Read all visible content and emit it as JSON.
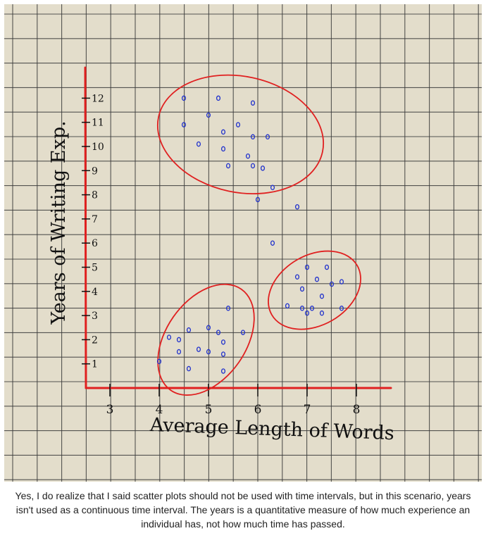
{
  "chart_data": {
    "type": "scatter",
    "xlabel": "Average Length of Words",
    "ylabel": "Years of Writing Exp.",
    "x_ticks": [
      3,
      4,
      5,
      6,
      7,
      8
    ],
    "y_ticks": [
      1,
      2,
      3,
      4,
      5,
      6,
      7,
      8,
      9,
      10,
      11,
      12
    ],
    "xlim": [
      2.5,
      8.6
    ],
    "ylim": [
      0,
      12.6
    ],
    "grid": true,
    "clusters_circled": 3,
    "points": [
      {
        "x": 4.5,
        "y": 12.0
      },
      {
        "x": 5.2,
        "y": 12.0
      },
      {
        "x": 5.9,
        "y": 11.8
      },
      {
        "x": 5.0,
        "y": 11.3
      },
      {
        "x": 4.5,
        "y": 10.9
      },
      {
        "x": 5.6,
        "y": 10.9
      },
      {
        "x": 5.3,
        "y": 10.6
      },
      {
        "x": 5.9,
        "y": 10.4
      },
      {
        "x": 6.2,
        "y": 10.4
      },
      {
        "x": 4.8,
        "y": 10.1
      },
      {
        "x": 5.3,
        "y": 9.9
      },
      {
        "x": 5.8,
        "y": 9.6
      },
      {
        "x": 5.4,
        "y": 9.2
      },
      {
        "x": 5.9,
        "y": 9.2
      },
      {
        "x": 6.1,
        "y": 9.1
      },
      {
        "x": 6.3,
        "y": 8.3
      },
      {
        "x": 6.0,
        "y": 7.8
      },
      {
        "x": 6.8,
        "y": 7.5
      },
      {
        "x": 6.3,
        "y": 6.0
      },
      {
        "x": 7.0,
        "y": 5.0
      },
      {
        "x": 7.4,
        "y": 5.0
      },
      {
        "x": 6.8,
        "y": 4.6
      },
      {
        "x": 7.2,
        "y": 4.5
      },
      {
        "x": 7.5,
        "y": 4.3
      },
      {
        "x": 7.7,
        "y": 4.4
      },
      {
        "x": 6.9,
        "y": 4.1
      },
      {
        "x": 7.3,
        "y": 3.8
      },
      {
        "x": 6.6,
        "y": 3.4
      },
      {
        "x": 6.9,
        "y": 3.3
      },
      {
        "x": 7.1,
        "y": 3.3
      },
      {
        "x": 7.0,
        "y": 3.1
      },
      {
        "x": 7.3,
        "y": 3.1
      },
      {
        "x": 7.7,
        "y": 3.3
      },
      {
        "x": 5.4,
        "y": 3.3
      },
      {
        "x": 5.0,
        "y": 2.5
      },
      {
        "x": 4.6,
        "y": 2.4
      },
      {
        "x": 5.2,
        "y": 2.3
      },
      {
        "x": 5.7,
        "y": 2.3
      },
      {
        "x": 4.2,
        "y": 2.1
      },
      {
        "x": 4.4,
        "y": 2.0
      },
      {
        "x": 5.3,
        "y": 1.9
      },
      {
        "x": 4.8,
        "y": 1.6
      },
      {
        "x": 5.0,
        "y": 1.5
      },
      {
        "x": 4.4,
        "y": 1.5
      },
      {
        "x": 5.3,
        "y": 1.4
      },
      {
        "x": 4.0,
        "y": 1.1
      },
      {
        "x": 4.6,
        "y": 0.8
      },
      {
        "x": 5.3,
        "y": 0.7
      }
    ]
  },
  "caption": "Yes, I do realize that I said scatter plots should not be used with time intervals, but in this scenario, years isn't used as a continuous time interval. The years is a quantitative measure of how much experience an individual has, not how much time has passed.",
  "colors": {
    "paper": "#e3ddcb",
    "grid": "#3b3b3b",
    "axis": "#e02020",
    "circle": "#e02020",
    "point": "#2233cc",
    "ink": "#111111"
  }
}
